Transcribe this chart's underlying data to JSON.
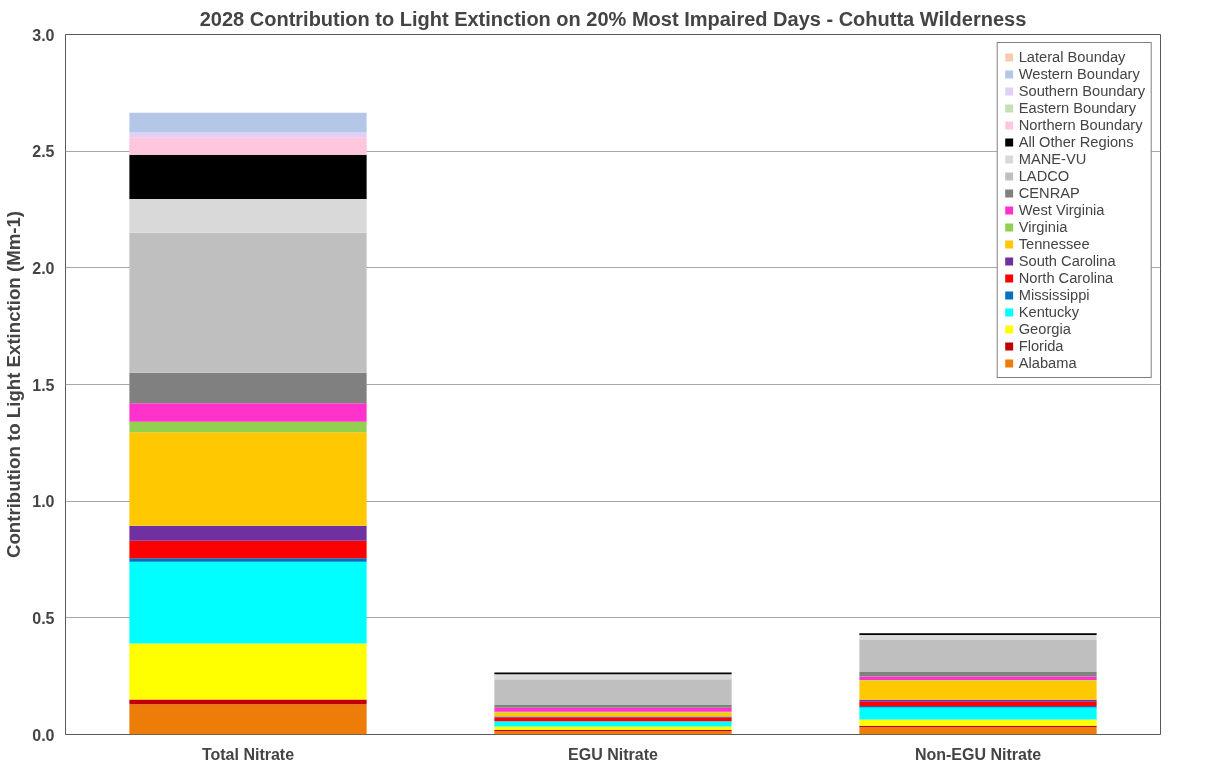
{
  "chart_data": {
    "type": "bar",
    "stacked": true,
    "title": "2028 Contribution to Light Extinction on 20% Most Impaired Days - Cohutta Wilderness",
    "ylabel": "Contribution to Light Extinction (Mm-1)",
    "categories": [
      "Total Nitrate",
      "EGU Nitrate",
      "Non-EGU Nitrate"
    ],
    "ylim": [
      0,
      3.0
    ],
    "yticks": [
      {
        "value": 0,
        "label": "0.0"
      },
      {
        "value": 0.5,
        "label": "0.5"
      },
      {
        "value": 1.0,
        "label": "1.0"
      },
      {
        "value": 1.5,
        "label": "1.5"
      },
      {
        "value": 2.0,
        "label": "2.0"
      },
      {
        "value": 2.5,
        "label": "2.5"
      },
      {
        "value": 3.0,
        "label": "3.0"
      }
    ],
    "grid": "y",
    "legend": "top right",
    "series": [
      {
        "name": "Alabama",
        "color": "#ee7c08",
        "values": [
          0.13,
          0.014,
          0.031
        ]
      },
      {
        "name": "Florida",
        "color": "#c00000",
        "values": [
          0.02,
          0.005,
          0.006
        ]
      },
      {
        "name": "Georgia",
        "color": "#ffff00",
        "values": [
          0.24,
          0.015,
          0.027
        ]
      },
      {
        "name": "Kentucky",
        "color": "#00ffff",
        "values": [
          0.35,
          0.023,
          0.052
        ]
      },
      {
        "name": "Mississippi",
        "color": "#0070c0",
        "values": [
          0.015,
          null,
          0.006
        ]
      },
      {
        "name": "North Carolina",
        "color": "#ff0000",
        "values": [
          0.075,
          0.015,
          0.018
        ]
      },
      {
        "name": "South Carolina",
        "color": "#7030a0",
        "values": [
          0.065,
          0.005,
          0.009
        ]
      },
      {
        "name": "Tennessee",
        "color": "#ffc800",
        "values": [
          0.4,
          0.017,
          0.082
        ]
      },
      {
        "name": "Virginia",
        "color": "#92d050",
        "values": [
          0.045,
          0.003,
          0.003
        ]
      },
      {
        "name": "West Virginia",
        "color": "#ff33cc",
        "values": [
          0.08,
          0.018,
          0.015
        ]
      },
      {
        "name": "CENRAP",
        "color": "#808080",
        "values": [
          0.13,
          0.014,
          0.021
        ]
      },
      {
        "name": "LADCO",
        "color": "#bfbfbf",
        "values": [
          0.6,
          0.108,
          0.135
        ]
      },
      {
        "name": "MANE-VU",
        "color": "#d9d9d9",
        "values": [
          0.145,
          0.021,
          0.021
        ]
      },
      {
        "name": "All Other Regions",
        "color": "#000000",
        "values": [
          0.19,
          0.008,
          0.008
        ]
      },
      {
        "name": "Northern Boundary",
        "color": "#ffc6dd",
        "values": [
          0.075,
          0,
          0
        ]
      },
      {
        "name": "Eastern Boundary",
        "color": "#c5e0b4",
        "values": [
          null,
          0,
          0
        ]
      },
      {
        "name": "Southern Boundary",
        "color": "#e0d0f8",
        "values": [
          0.02,
          0,
          0
        ]
      },
      {
        "name": "Western Boundary",
        "color": "#b4c7e7",
        "values": [
          0.085,
          0,
          0
        ]
      },
      {
        "name": "Lateral Bounday",
        "color": "#f8cbad",
        "values": [
          0,
          0,
          0
        ]
      }
    ]
  }
}
